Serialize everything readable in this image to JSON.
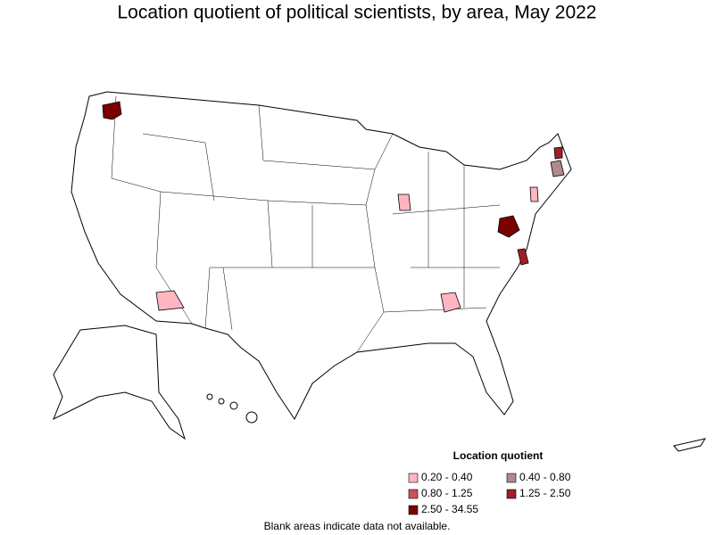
{
  "title": "Location quotient of political scientists, by area, May 2022",
  "legend": {
    "title": "Location quotient",
    "items": [
      {
        "label": "0.20 - 0.40",
        "color": "#ffb6c1"
      },
      {
        "label": "0.40 - 0.80",
        "color": "#b08a8a"
      },
      {
        "label": "0.80 - 1.25",
        "color": "#d0505a"
      },
      {
        "label": "1.25 - 2.50",
        "color": "#a01e28"
      },
      {
        "label": "2.50 - 34.55",
        "color": "#7a0000"
      }
    ]
  },
  "footnote": "Blank areas indicate data not available."
}
